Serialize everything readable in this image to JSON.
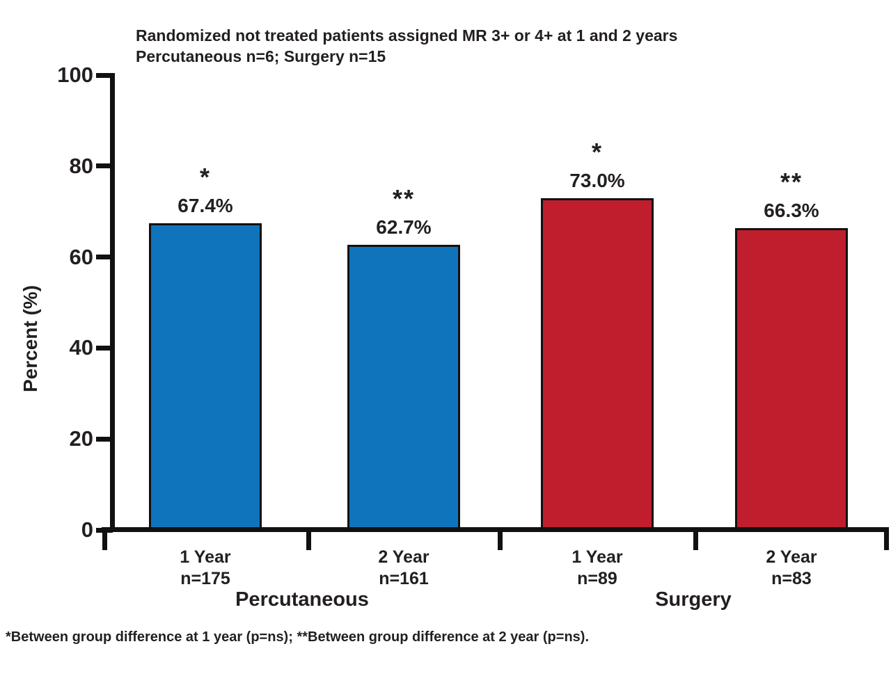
{
  "chart_data": {
    "type": "bar",
    "title": "Randomized not treated patients assigned MR 3+ or 4+ at 1 and 2 years",
    "subtitle": "Percutaneous n=6; Surgery n=15",
    "ylabel": "Percent (%)",
    "ylim": [
      0,
      100
    ],
    "yticks": [
      0,
      20,
      40,
      60,
      80,
      100
    ],
    "grid": false,
    "legend": "none",
    "groups": [
      {
        "label": "Percutaneous",
        "color": "#1074BD",
        "bars": [
          {
            "category": "1 Year",
            "n_label": "n=175",
            "value": 67.4,
            "value_label": "67.4%",
            "marker": "*"
          },
          {
            "category": "2 Year",
            "n_label": "n=161",
            "value": 62.7,
            "value_label": "62.7%",
            "marker": "**"
          }
        ]
      },
      {
        "label": "Surgery",
        "color": "#C01E2D",
        "bars": [
          {
            "category": "1 Year",
            "n_label": "n=89",
            "value": 73.0,
            "value_label": "73.0%",
            "marker": "*"
          },
          {
            "category": "2 Year",
            "n_label": "n=83",
            "value": 66.3,
            "value_label": "66.3%",
            "marker": "**"
          }
        ]
      }
    ],
    "footnote": "*Between group difference at 1 year (p=ns); **Between group difference at 2 year (p=ns)."
  },
  "colors": {
    "percutaneous_blue": "#1074BD",
    "surgery_red": "#C01E2D",
    "axis_black": "#111111",
    "text": "#231F20",
    "background": "#FFFFFF"
  }
}
